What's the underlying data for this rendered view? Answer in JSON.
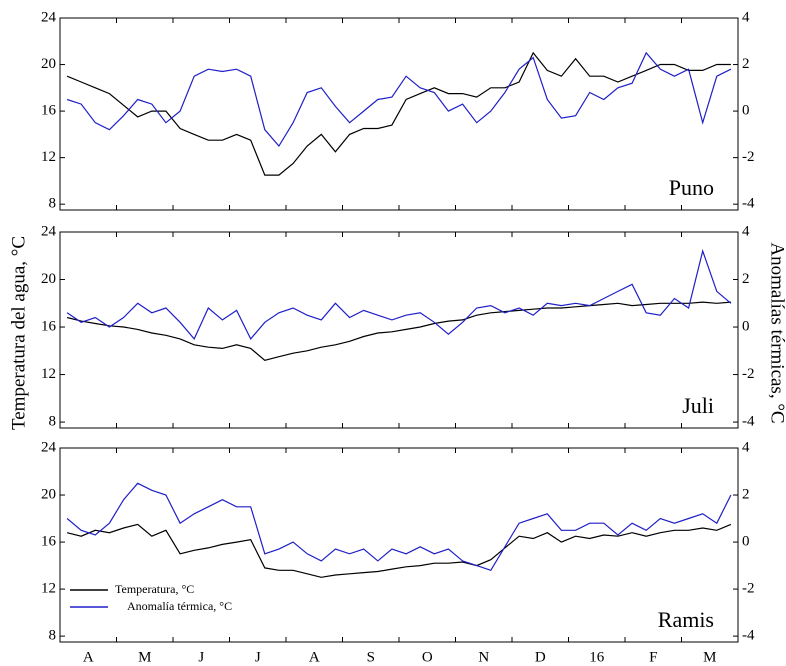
{
  "chart_data": [
    {
      "type": "line",
      "annotation": "Puno",
      "ylabel": "Temperatura del agua, °C",
      "y2label": "Anomalías térmicas, °C",
      "ylim": [
        7.5,
        24
      ],
      "yticks": [
        8,
        12,
        16,
        20,
        24
      ],
      "y2lim": [
        -4.25,
        4
      ],
      "y2ticks": [
        -4,
        -2,
        0,
        2,
        4
      ],
      "series": [
        {
          "color": "#000000",
          "values": [
            19,
            18.5,
            18,
            17.5,
            16.5,
            15.5,
            16,
            16,
            14.5,
            14,
            13.5,
            13.5,
            14,
            13.5,
            10.5,
            10.5,
            11.5,
            13,
            14,
            12.5,
            14,
            14.5,
            14.5,
            14.8,
            17,
            17.5,
            18,
            17.5,
            17.5,
            17.2,
            18,
            18,
            18.5,
            21,
            19.5,
            19,
            20.5,
            19,
            19,
            18.5,
            19,
            19.5,
            20,
            20,
            19.5,
            19.5,
            20,
            20
          ]
        },
        {
          "color": "#1f1fc8",
          "axis": "y2",
          "values": [
            0.5,
            0.3,
            -0.5,
            -0.8,
            -0.2,
            0.5,
            0.3,
            -0.5,
            0,
            1.5,
            1.8,
            1.7,
            1.8,
            1.5,
            -0.8,
            -1.5,
            -0.5,
            0.8,
            1.0,
            0.2,
            -0.5,
            0,
            0.5,
            0.6,
            1.5,
            1.0,
            0.8,
            0,
            0.3,
            -0.5,
            0,
            0.8,
            1.8,
            2.3,
            0.5,
            -0.3,
            -0.2,
            0.8,
            0.5,
            1.0,
            1.2,
            2.5,
            1.8,
            1.5,
            1.8,
            -0.5,
            1.5,
            1.8
          ]
        }
      ]
    },
    {
      "type": "line",
      "annotation": "Juli",
      "ylim": [
        7.5,
        24
      ],
      "yticks": [
        8,
        12,
        16,
        20,
        24
      ],
      "y2lim": [
        -4.25,
        4
      ],
      "y2ticks": [
        -4,
        -2,
        0,
        2,
        4
      ],
      "series": [
        {
          "color": "#000000",
          "values": [
            16.8,
            16.5,
            16.3,
            16.1,
            16,
            15.8,
            15.5,
            15.3,
            15,
            14.5,
            14.3,
            14.2,
            14.5,
            14.2,
            13.2,
            13.5,
            13.8,
            14,
            14.3,
            14.5,
            14.8,
            15.2,
            15.5,
            15.6,
            15.8,
            16,
            16.3,
            16.5,
            16.6,
            17,
            17.2,
            17.3,
            17.4,
            17.5,
            17.6,
            17.6,
            17.7,
            17.8,
            17.9,
            18,
            17.8,
            17.9,
            18,
            18,
            18,
            18.1,
            18,
            18.1
          ]
        },
        {
          "color": "#1f1fc8",
          "axis": "y2",
          "values": [
            0.6,
            0.2,
            0.4,
            0,
            0.4,
            1,
            0.6,
            0.8,
            0.2,
            -0.5,
            0.8,
            0.3,
            0.7,
            -0.5,
            0.2,
            0.6,
            0.8,
            0.5,
            0.3,
            1.0,
            0.4,
            0.7,
            0.5,
            0.3,
            0.5,
            0.6,
            0.2,
            -0.3,
            0.2,
            0.8,
            0.9,
            0.6,
            0.8,
            0.5,
            1.0,
            0.9,
            1.0,
            0.9,
            1.2,
            1.5,
            1.8,
            0.6,
            0.5,
            1.2,
            0.8,
            3.2,
            1.5,
            1.0
          ]
        }
      ]
    },
    {
      "type": "line",
      "annotation": "Ramis",
      "legend": "lower left",
      "categories": [
        null,
        null,
        "A",
        null,
        null,
        null,
        "M",
        null,
        null,
        null,
        "J",
        null,
        null,
        null,
        "J",
        null,
        null,
        null,
        "A",
        null,
        null,
        null,
        "S",
        null,
        null,
        null,
        "O",
        null,
        null,
        null,
        "N",
        null,
        null,
        null,
        "D",
        null,
        null,
        null,
        "16",
        null,
        null,
        null,
        "F",
        null,
        null,
        null,
        "M",
        null
      ],
      "ylim": [
        7.5,
        24
      ],
      "yticks": [
        8,
        12,
        16,
        20,
        24
      ],
      "y2lim": [
        -4.25,
        4
      ],
      "y2ticks": [
        -4,
        -2,
        0,
        2,
        4
      ],
      "series": [
        {
          "name": "Temperatura, °C",
          "color": "#000000",
          "values": [
            16.8,
            16.5,
            17,
            16.8,
            17.2,
            17.5,
            16.5,
            17,
            15,
            15.3,
            15.5,
            15.8,
            16,
            16.2,
            13.8,
            13.6,
            13.6,
            13.3,
            13,
            13.2,
            13.3,
            13.4,
            13.5,
            13.7,
            13.9,
            14,
            14.2,
            14.2,
            14.3,
            14,
            14.5,
            15.5,
            16.5,
            16.3,
            16.8,
            16,
            16.5,
            16.3,
            16.6,
            16.5,
            16.8,
            16.5,
            16.8,
            17,
            17,
            17.2,
            17,
            17.5
          ]
        },
        {
          "name": "Anomalía térmica, °C",
          "color": "#1f1fc8",
          "axis": "y2",
          "values": [
            1.0,
            0.5,
            0.3,
            0.8,
            1.8,
            2.5,
            2.2,
            2.0,
            0.8,
            1.2,
            1.5,
            1.8,
            1.5,
            1.5,
            -0.5,
            -0.3,
            0,
            -0.5,
            -0.8,
            -0.3,
            -0.5,
            -0.3,
            -0.8,
            -0.3,
            -0.5,
            -0.2,
            -0.5,
            -0.3,
            -0.8,
            -1.0,
            -1.2,
            -0.2,
            0.8,
            1.0,
            1.2,
            0.5,
            0.5,
            0.8,
            0.8,
            0.3,
            0.8,
            0.5,
            1.0,
            0.8,
            1.0,
            1.2,
            0.8,
            2.0
          ]
        }
      ]
    }
  ]
}
